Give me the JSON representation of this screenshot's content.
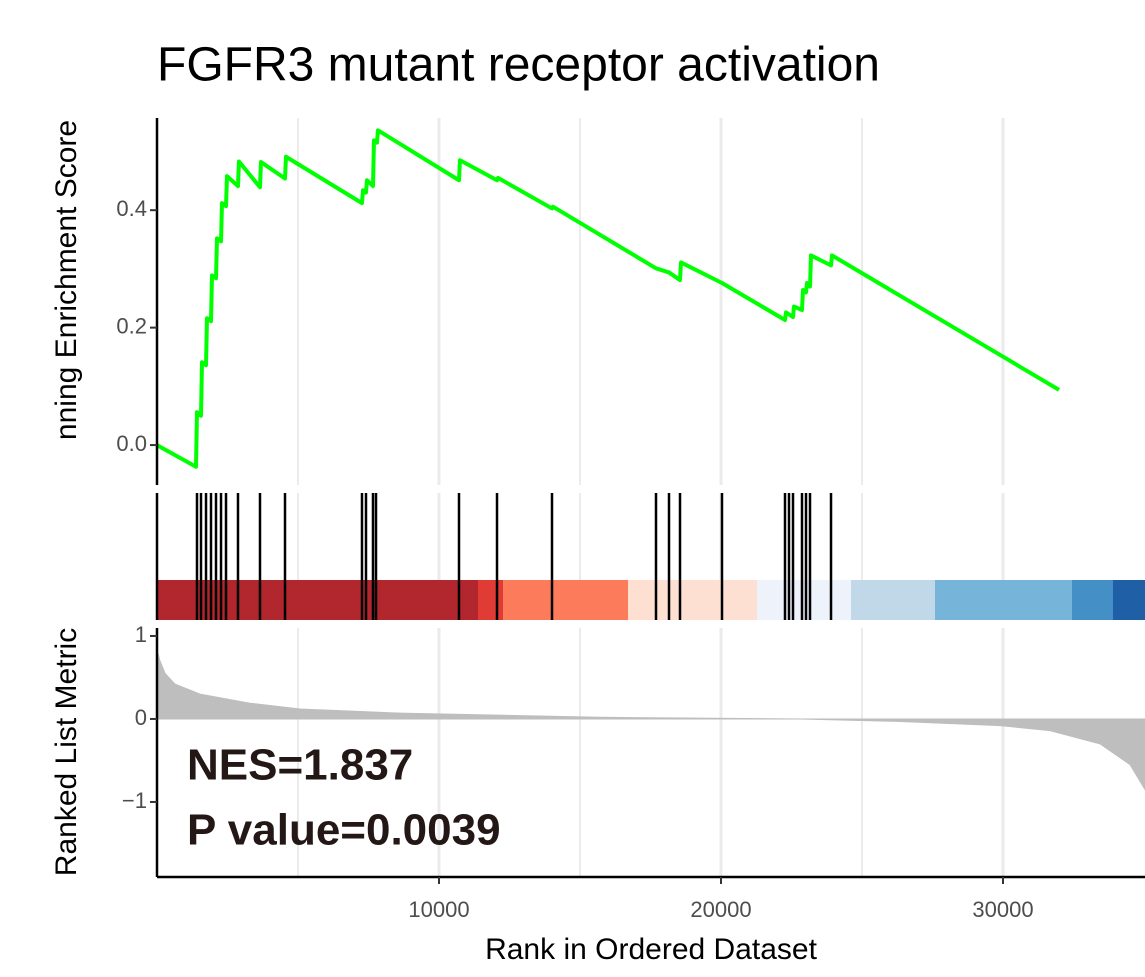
{
  "chart_data": {
    "type": "gsea",
    "title": "FGFR3 mutant receptor activation",
    "ylabel": "nning Enrichment Score",
    "y2label": "Ranked List Metric",
    "xlabel": "Rank in Ordered Dataset",
    "annotations": [
      "NES=1.837",
      "P value=0.0039"
    ],
    "xlim": [
      0,
      35035
    ],
    "xticks": [
      10000,
      20000,
      30000
    ],
    "x_minor_grid": [
      5000,
      15000,
      25000
    ],
    "ylim": [
      -0.068,
      0.557
    ],
    "yticks": [
      {
        "value": 0,
        "label": "0.0"
      },
      0.2,
      0.4
    ],
    "y2lim": [
      -1.904,
      1.096
    ],
    "y2ticks": [
      {
        "value": -1,
        "label": "−1"
      },
      0,
      1
    ],
    "grid": true,
    "series": [
      {
        "color": "#00ff00",
        "x": [
          0,
          1383,
          1418,
          1560,
          1596,
          1738,
          1773,
          1915,
          1950,
          2092,
          2128,
          2270,
          2305,
          2447,
          2482,
          2872,
          2907,
          3652,
          3687,
          4539,
          4574,
          7269,
          7304,
          7411,
          7446,
          7659,
          7694,
          7801,
          7836,
          10709,
          10744,
          12057,
          12092,
          14007,
          14042,
          17695,
          18156,
          18546,
          18581,
          20035,
          22269,
          22304,
          22553,
          22588,
          22872,
          22907,
          23014,
          23049,
          23156,
          23191,
          23901,
          23936,
          31986
        ],
        "values": [
          0,
          -0.037,
          0.056,
          0.05,
          0.141,
          0.136,
          0.216,
          0.211,
          0.289,
          0.284,
          0.352,
          0.347,
          0.412,
          0.407,
          0.458,
          0.441,
          0.483,
          0.439,
          0.482,
          0.454,
          0.491,
          0.412,
          0.434,
          0.43,
          0.451,
          0.441,
          0.519,
          0.515,
          0.536,
          0.451,
          0.485,
          0.451,
          0.455,
          0.403,
          0.406,
          0.301,
          0.294,
          0.281,
          0.311,
          0.276,
          0.213,
          0.226,
          0.218,
          0.236,
          0.23,
          0.264,
          0.26,
          0.276,
          0.27,
          0.323,
          0.306,
          0.323,
          0.094
        ]
      }
    ],
    "hits": [
      1418,
      1560,
      1738,
      1915,
      2092,
      2270,
      2447,
      2872,
      3652,
      4539,
      7269,
      7411,
      7659,
      7766,
      10709,
      12057,
      14007,
      17695,
      18156,
      18546,
      20035,
      22269,
      22411,
      22553,
      22872,
      23014,
      23156,
      23901
    ],
    "color_bar": [
      {
        "start": 0,
        "end": 11383,
        "color": "#b2262e"
      },
      {
        "start": 11383,
        "end": 12270,
        "color": "#e03b35"
      },
      {
        "start": 12270,
        "end": 16702,
        "color": "#fb7b5b"
      },
      {
        "start": 16702,
        "end": 21276,
        "color": "#fde0d2"
      },
      {
        "start": 21276,
        "end": 24609,
        "color": "#eef2fb"
      },
      {
        "start": 24609,
        "end": 27588,
        "color": "#c0d8e8"
      },
      {
        "start": 27588,
        "end": 32446,
        "color": "#77b4da"
      },
      {
        "start": 32446,
        "end": 33900,
        "color": "#4490c6"
      },
      {
        "start": 33900,
        "end": 35035,
        "color": "#1f5fa6"
      }
    ],
    "metric": {
      "color": "#bebebe",
      "x": [
        0,
        106,
        284,
        638,
        1525,
        3298,
        5071,
        8617,
        15709,
        22801,
        26347,
        29893,
        31666,
        33439,
        34503,
        35035
      ],
      "values": [
        0.83,
        0.7,
        0.55,
        0.42,
        0.3,
        0.19,
        0.12,
        0.07,
        0.02,
        0,
        -0.03,
        -0.08,
        -0.14,
        -0.3,
        -0.55,
        -0.85
      ]
    }
  }
}
